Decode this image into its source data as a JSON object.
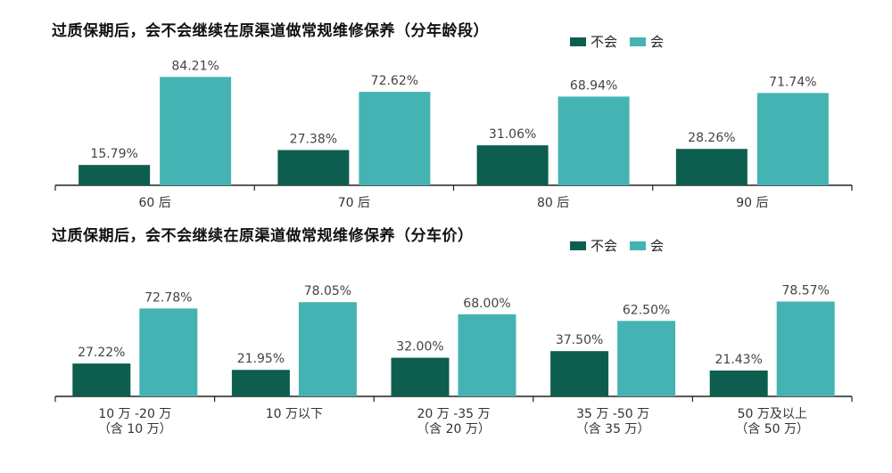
{
  "colors": {
    "no": "#0d5e4f",
    "yes": "#45b3b3",
    "axis": "#222222"
  },
  "chart_data": [
    {
      "type": "bar",
      "title": "过质保期后，会不会继续在原渠道做常规维修保养（分年龄段）",
      "legend": [
        "不会",
        "会"
      ],
      "legend_position": "top-right",
      "categories": [
        [
          "60 后"
        ],
        [
          "70 后"
        ],
        [
          "80 后"
        ],
        [
          "90 后"
        ]
      ],
      "series": [
        {
          "name": "不会",
          "values": [
            15.79,
            27.38,
            31.06,
            28.26
          ],
          "labels": [
            "15.79%",
            "27.38%",
            "31.06%",
            "28.26%"
          ]
        },
        {
          "name": "会",
          "values": [
            84.21,
            72.62,
            68.94,
            71.74
          ],
          "labels": [
            "84.21%",
            "72.62%",
            "68.94%",
            "71.74%"
          ]
        }
      ],
      "ylim": [
        0,
        90
      ],
      "grid": false
    },
    {
      "type": "bar",
      "title": "过质保期后，会不会继续在原渠道做常规维修保养（分车价）",
      "legend": [
        "不会",
        "会"
      ],
      "legend_position": "top-right",
      "categories": [
        [
          "10 万 -20 万",
          "（含 10 万）"
        ],
        [
          "10 万以下"
        ],
        [
          "20 万 -35 万",
          "（含 20 万）"
        ],
        [
          "35 万 -50 万",
          "（含 35 万）"
        ],
        [
          "50 万及以上",
          "（含 50 万）"
        ]
      ],
      "series": [
        {
          "name": "不会",
          "values": [
            27.22,
            21.95,
            32.0,
            37.5,
            21.43
          ],
          "labels": [
            "27.22%",
            "21.95%",
            "32.00%",
            "37.50%",
            "21.43%"
          ]
        },
        {
          "name": "会",
          "values": [
            72.78,
            78.05,
            68.0,
            62.5,
            78.57
          ],
          "labels": [
            "72.78%",
            "78.05%",
            "68.00%",
            "62.50%",
            "78.57%"
          ]
        }
      ],
      "ylim": [
        0,
        90
      ],
      "grid": false
    }
  ]
}
